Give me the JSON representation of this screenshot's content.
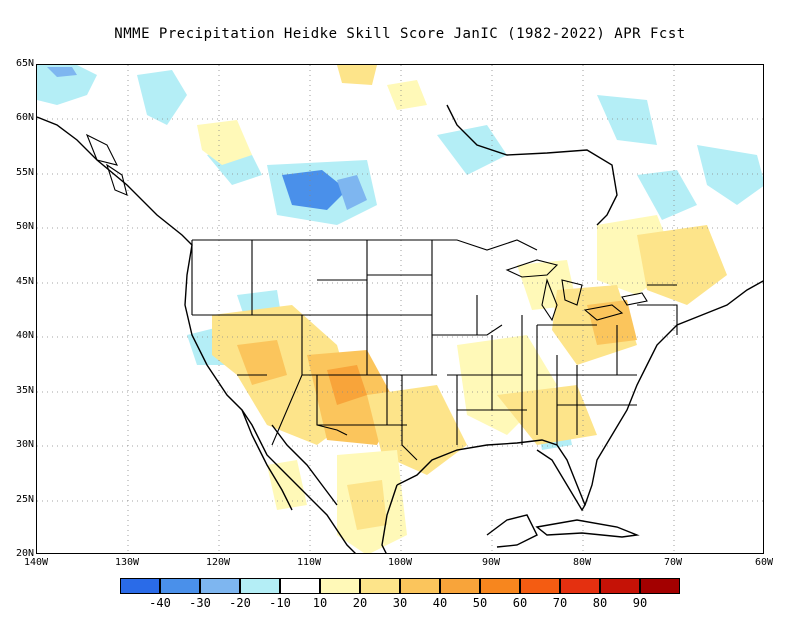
{
  "title": "NMME  Precipitation Heidke Skill Score JanIC (1982-2022) APR Fcst",
  "y_axis": [
    "65N",
    "60N",
    "55N",
    "50N",
    "45N",
    "40N",
    "35N",
    "30N",
    "25N",
    "20N"
  ],
  "x_axis": [
    "140W",
    "130W",
    "120W",
    "110W",
    "100W",
    "90W",
    "80W",
    "70W",
    "60W"
  ],
  "legend": {
    "colors": [
      "#2a6be8",
      "#4a90ea",
      "#7eb6f0",
      "#b4eef6",
      "#ffffff",
      "#fff9b8",
      "#fde48a",
      "#fbc55c",
      "#f8a43a",
      "#f7861e",
      "#f45c12",
      "#e43010",
      "#c51206",
      "#a30000"
    ],
    "labels": [
      "-40",
      "-30",
      "-20",
      "-10",
      "10",
      "20",
      "30",
      "40",
      "50",
      "60",
      "70",
      "80",
      "90"
    ]
  },
  "map_extent": {
    "lon_min": -140,
    "lon_max": -60,
    "lat_min": 20,
    "lat_max": 65
  }
}
